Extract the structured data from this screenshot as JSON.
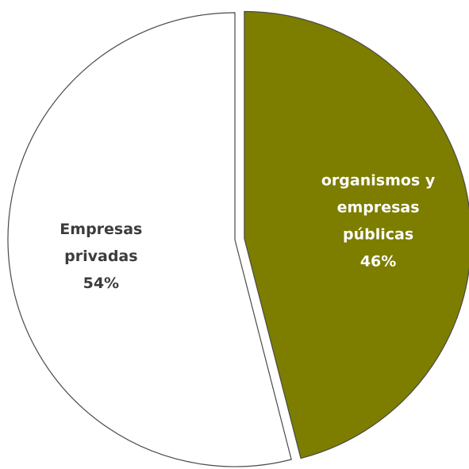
{
  "chart_data": {
    "type": "pie",
    "title": "",
    "slices": [
      {
        "label_lines": [
          "organismos y",
          "empresas",
          "públicas"
        ],
        "value_label": "46%",
        "value": 46,
        "color": "#7d7d00",
        "label_color": "#ffffff",
        "exploded": true
      },
      {
        "label_lines": [
          "Empresas",
          "privadas"
        ],
        "value_label": "54%",
        "value": 54,
        "color": "#ffffff",
        "label_color": "#3c3c3c",
        "exploded": false
      }
    ],
    "legend": "none",
    "start_angle_deg": 0,
    "direction": "clockwise"
  }
}
